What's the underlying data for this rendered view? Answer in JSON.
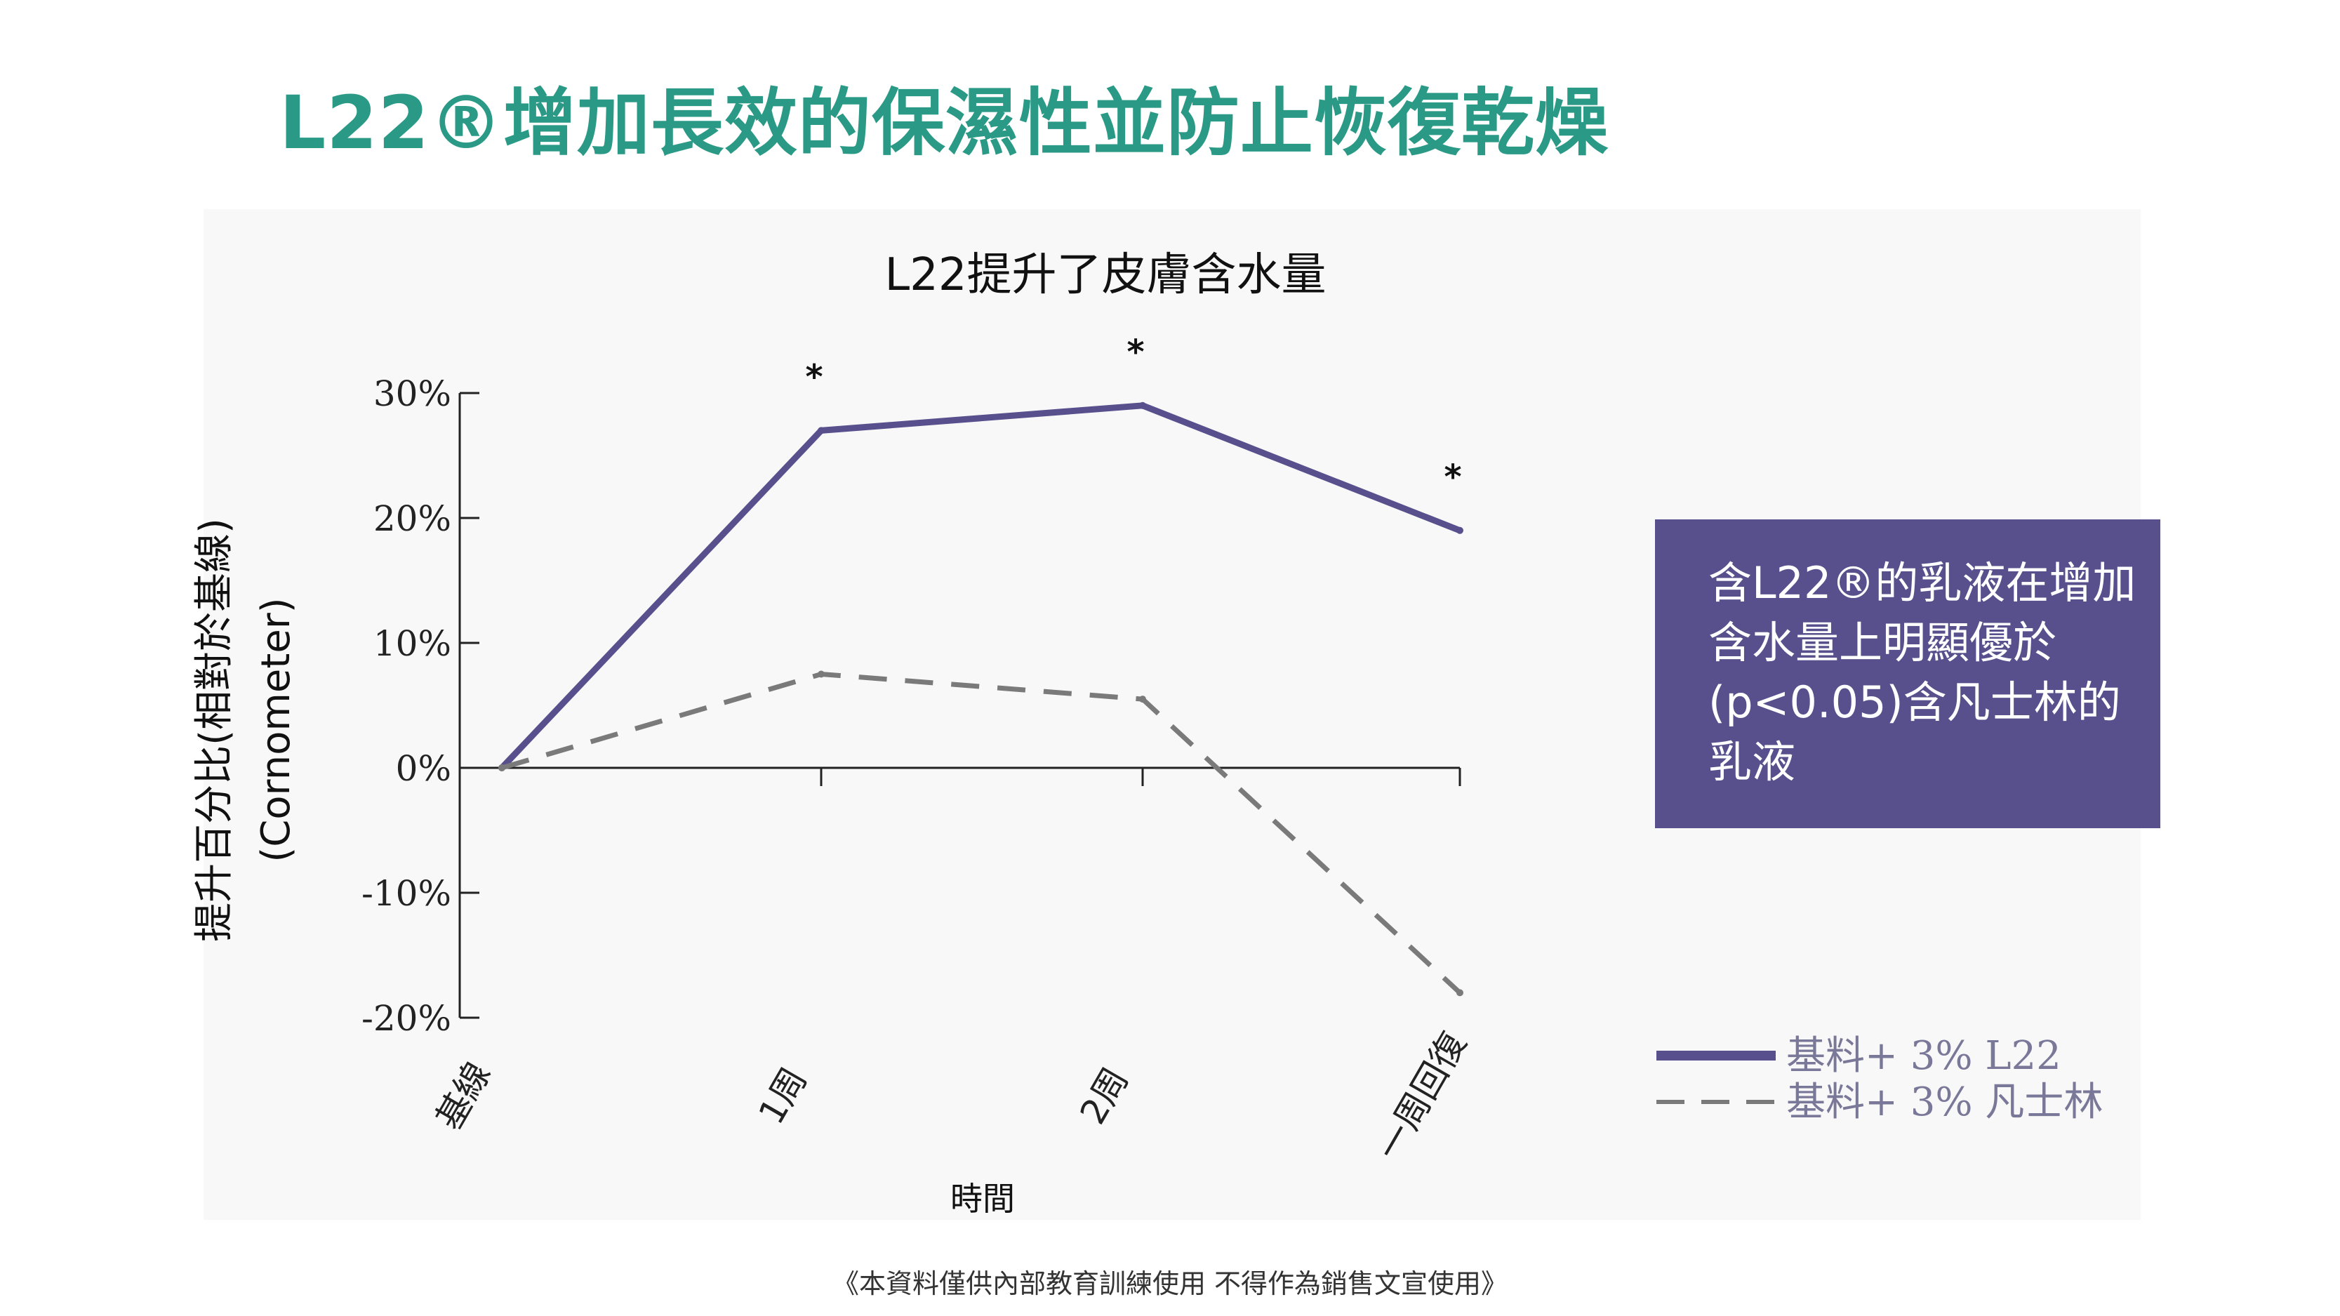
{
  "page": {
    "title": "L22®增加長效的保濕性並防止恢復乾燥",
    "footer": "《本資料僅供內部教育訓練使用  不得作為銷售文宣使用》"
  },
  "callout": {
    "lines": [
      "含L22®的乳液在增加",
      "含水量上明顯優於",
      "(p<0.05)含凡士林的",
      "乳液"
    ],
    "color": "#57508d"
  },
  "chart_data": {
    "type": "line",
    "title": "L22提升了皮膚含水量",
    "xlabel": "時間",
    "ylabel": [
      "提升百分比(相對於基線)",
      "(Cornometer)"
    ],
    "categories": [
      "基線",
      "1周",
      "2周",
      "一周回復"
    ],
    "ylim": [
      -20,
      30
    ],
    "yticks": [
      30,
      20,
      10,
      0,
      -10,
      -20
    ],
    "ytick_labels": [
      "30%",
      "20%",
      "10%",
      "0%",
      "-10%",
      "-20%"
    ],
    "grid": false,
    "legend_position": "right-bottom",
    "significance_markers": [
      {
        "category": "1周",
        "label": "*"
      },
      {
        "category": "2周",
        "label": "*"
      },
      {
        "category": "一周回復",
        "label": "*"
      }
    ],
    "series": [
      {
        "name": "基料+ 3% L22",
        "values": [
          0,
          27,
          29,
          19
        ],
        "color": "#57508d",
        "style": "solid"
      },
      {
        "name": "基料+ 3% 凡士林",
        "values": [
          0,
          7.5,
          5.5,
          -18
        ],
        "color": "#7a7a7a",
        "style": "dashed"
      }
    ]
  }
}
